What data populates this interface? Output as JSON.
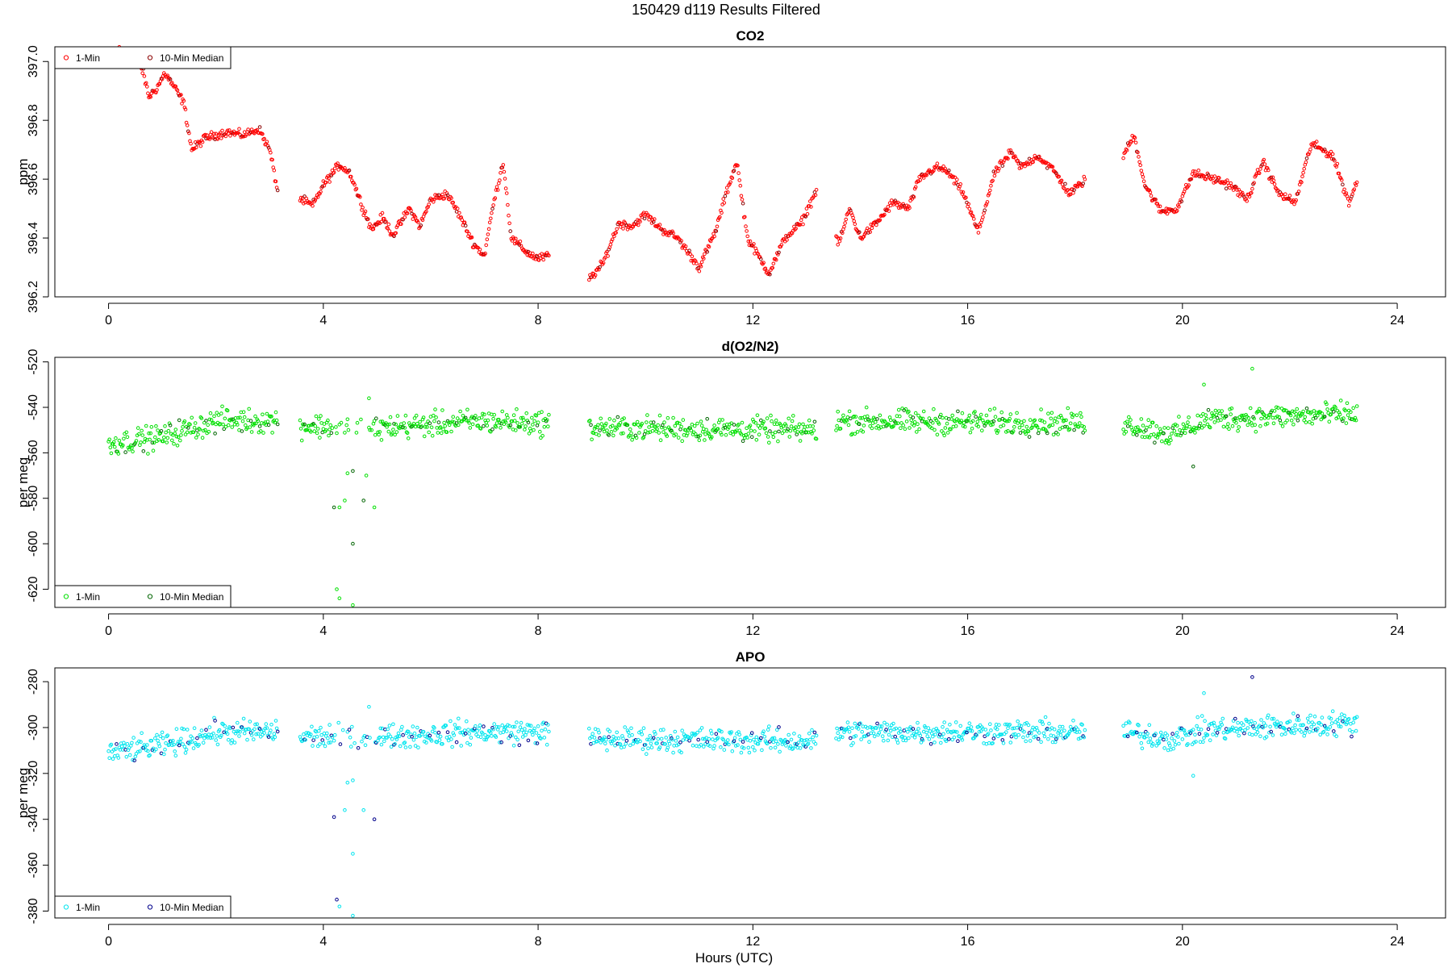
{
  "figure": {
    "title": "150429   d119   Results Filtered",
    "xlabel": "Hours (UTC)"
  },
  "chart_data": [
    {
      "type": "scatter",
      "title": "CO2",
      "xlabel": "Hours (UTC)",
      "ylabel": "ppm",
      "xlim": [
        -1,
        24.9
      ],
      "ylim": [
        396.2,
        397.05
      ],
      "xticks": [
        0,
        4,
        8,
        12,
        16,
        20,
        24
      ],
      "yticks": [
        396.2,
        396.4,
        396.6,
        396.8,
        397.0
      ],
      "ytick_labels": [
        "396.2",
        "396.4",
        "396.6",
        "396.8",
        "397.0"
      ],
      "legend": {
        "position": "top-left",
        "entries": [
          "1-Min",
          "10-Min Median"
        ]
      },
      "series": [
        {
          "name": "1-Min",
          "color": "#ff0000",
          "marker": "open-circle"
        },
        {
          "name": "10-Min Median",
          "color": "#8b0000",
          "marker": "open-circle"
        }
      ],
      "gaps": [
        [
          3.15,
          3.55
        ],
        [
          8.2,
          8.95
        ],
        [
          13.2,
          13.55
        ],
        [
          18.2,
          18.9
        ]
      ],
      "anchors": [
        [
          0,
          397.08
        ],
        [
          0.3,
          397.02
        ],
        [
          0.45,
          397.04
        ],
        [
          0.65,
          396.96
        ],
        [
          0.75,
          396.88
        ],
        [
          0.9,
          396.91
        ],
        [
          1.05,
          396.96
        ],
        [
          1.2,
          396.92
        ],
        [
          1.4,
          396.86
        ],
        [
          1.55,
          396.7
        ],
        [
          1.8,
          396.74
        ],
        [
          2.2,
          396.76
        ],
        [
          2.5,
          396.75
        ],
        [
          2.8,
          396.77
        ],
        [
          3.0,
          396.7
        ],
        [
          3.15,
          396.56
        ],
        [
          3.6,
          396.53
        ],
        [
          3.8,
          396.51
        ],
        [
          4.0,
          396.58
        ],
        [
          4.3,
          396.65
        ],
        [
          4.5,
          396.62
        ],
        [
          4.7,
          396.52
        ],
        [
          4.9,
          396.43
        ],
        [
          5.1,
          396.47
        ],
        [
          5.3,
          396.41
        ],
        [
          5.6,
          396.5
        ],
        [
          5.8,
          396.44
        ],
        [
          6.0,
          396.53
        ],
        [
          6.3,
          396.55
        ],
        [
          6.5,
          396.49
        ],
        [
          6.8,
          396.38
        ],
        [
          7.0,
          396.34
        ],
        [
          7.15,
          396.5
        ],
        [
          7.35,
          396.66
        ],
        [
          7.5,
          396.4
        ],
        [
          7.8,
          396.35
        ],
        [
          8.0,
          396.33
        ],
        [
          8.2,
          396.34
        ],
        [
          8.95,
          396.26
        ],
        [
          9.2,
          396.31
        ],
        [
          9.5,
          396.45
        ],
        [
          9.75,
          396.44
        ],
        [
          10.0,
          396.48
        ],
        [
          10.3,
          396.43
        ],
        [
          10.6,
          396.4
        ],
        [
          10.8,
          396.35
        ],
        [
          11.0,
          396.3
        ],
        [
          11.3,
          396.42
        ],
        [
          11.5,
          396.55
        ],
        [
          11.7,
          396.66
        ],
        [
          11.9,
          396.4
        ],
        [
          12.1,
          396.34
        ],
        [
          12.3,
          396.28
        ],
        [
          12.6,
          396.4
        ],
        [
          12.9,
          396.45
        ],
        [
          13.2,
          396.57
        ],
        [
          13.6,
          396.38
        ],
        [
          13.8,
          396.5
        ],
        [
          14.0,
          396.4
        ],
        [
          14.3,
          396.45
        ],
        [
          14.6,
          396.52
        ],
        [
          14.9,
          396.5
        ],
        [
          15.1,
          396.6
        ],
        [
          15.4,
          396.64
        ],
        [
          15.6,
          396.63
        ],
        [
          15.9,
          396.56
        ],
        [
          16.2,
          396.42
        ],
        [
          16.5,
          396.62
        ],
        [
          16.8,
          396.69
        ],
        [
          17.0,
          396.64
        ],
        [
          17.3,
          396.68
        ],
        [
          17.6,
          396.63
        ],
        [
          17.9,
          396.55
        ],
        [
          18.2,
          396.6
        ],
        [
          18.9,
          396.68
        ],
        [
          19.1,
          396.75
        ],
        [
          19.3,
          396.58
        ],
        [
          19.6,
          396.49
        ],
        [
          19.9,
          396.5
        ],
        [
          20.2,
          396.62
        ],
        [
          20.6,
          396.6
        ],
        [
          20.9,
          396.58
        ],
        [
          21.2,
          396.53
        ],
        [
          21.5,
          396.66
        ],
        [
          21.8,
          396.55
        ],
        [
          22.1,
          396.52
        ],
        [
          22.4,
          396.72
        ],
        [
          22.8,
          396.68
        ],
        [
          23.1,
          396.52
        ],
        [
          23.25,
          396.59
        ]
      ],
      "noise": 0.012
    },
    {
      "type": "scatter",
      "title": "d(O2/N2)",
      "xlabel": "",
      "ylabel": "per meg",
      "xlim": [
        -1,
        24.9
      ],
      "ylim": [
        -628,
        -518
      ],
      "xticks": [
        0,
        4,
        8,
        12,
        16,
        20,
        24
      ],
      "yticks": [
        -620,
        -600,
        -580,
        -560,
        -540,
        -520
      ],
      "ytick_labels": [
        "-620",
        "-600",
        "-580",
        "-560",
        "-540",
        "-520"
      ],
      "legend": {
        "position": "bottom-left",
        "entries": [
          "1-Min",
          "10-Min Median"
        ]
      },
      "series": [
        {
          "name": "1-Min",
          "color": "#00e000",
          "marker": "open-circle"
        },
        {
          "name": "10-Min Median",
          "color": "#006400",
          "marker": "open-circle"
        }
      ],
      "gaps": [
        [
          3.15,
          3.55
        ],
        [
          8.2,
          8.95
        ],
        [
          13.2,
          13.55
        ],
        [
          18.2,
          18.9
        ]
      ],
      "anchors": [
        [
          0,
          -556
        ],
        [
          1.0,
          -553
        ],
        [
          2.0,
          -546
        ],
        [
          3.15,
          -546
        ],
        [
          3.55,
          -548
        ],
        [
          5,
          -549
        ],
        [
          7,
          -546
        ],
        [
          8.2,
          -547
        ],
        [
          8.95,
          -549
        ],
        [
          13.2,
          -550
        ],
        [
          13.55,
          -546
        ],
        [
          18.2,
          -547
        ],
        [
          18.9,
          -547
        ],
        [
          19.8,
          -552
        ],
        [
          20.5,
          -545
        ],
        [
          23.25,
          -543
        ]
      ],
      "noise": 4.5,
      "outliers": [
        [
          4.2,
          -584
        ],
        [
          4.3,
          -584
        ],
        [
          4.45,
          -569
        ],
        [
          4.4,
          -581
        ],
        [
          4.55,
          -600
        ],
        [
          4.25,
          -620
        ],
        [
          4.3,
          -624
        ],
        [
          4.55,
          -627
        ],
        [
          4.75,
          -581
        ],
        [
          4.95,
          -584
        ],
        [
          4.8,
          -570
        ],
        [
          4.85,
          -536
        ],
        [
          4.55,
          -568
        ],
        [
          4.9,
          -550
        ],
        [
          20.4,
          -530
        ],
        [
          21.3,
          -523
        ],
        [
          20.2,
          -566
        ]
      ]
    },
    {
      "type": "scatter",
      "title": "APO",
      "xlabel": "Hours (UTC)",
      "ylabel": "per meg",
      "xlim": [
        -1,
        24.9
      ],
      "ylim": [
        -383,
        -274
      ],
      "xticks": [
        0,
        4,
        8,
        12,
        16,
        20,
        24
      ],
      "yticks": [
        -380,
        -360,
        -340,
        -320,
        -300,
        -280
      ],
      "ytick_labels": [
        "-380",
        "-360",
        "-340",
        "-320",
        "-300",
        "-280"
      ],
      "legend": {
        "position": "bottom-left",
        "entries": [
          "1-Min",
          "10-Min Median"
        ]
      },
      "series": [
        {
          "name": "1-Min",
          "color": "#00e5ee",
          "marker": "open-circle"
        },
        {
          "name": "10-Min Median",
          "color": "#00008b",
          "marker": "open-circle"
        }
      ],
      "gaps": [
        [
          3.15,
          3.55
        ],
        [
          8.2,
          8.95
        ],
        [
          13.2,
          13.55
        ],
        [
          18.2,
          18.9
        ]
      ],
      "anchors": [
        [
          0,
          -311
        ],
        [
          1.0,
          -308
        ],
        [
          2.0,
          -302
        ],
        [
          3.15,
          -302
        ],
        [
          3.55,
          -304
        ],
        [
          5,
          -304
        ],
        [
          7,
          -302
        ],
        [
          8.2,
          -302
        ],
        [
          8.95,
          -305
        ],
        [
          13.2,
          -306
        ],
        [
          13.55,
          -302
        ],
        [
          18.2,
          -302
        ],
        [
          18.9,
          -302
        ],
        [
          19.8,
          -305
        ],
        [
          20.5,
          -301
        ],
        [
          23.25,
          -298
        ]
      ],
      "noise": 4.5,
      "outliers": [
        [
          4.2,
          -339
        ],
        [
          4.45,
          -324
        ],
        [
          4.4,
          -336
        ],
        [
          4.55,
          -355
        ],
        [
          4.25,
          -375
        ],
        [
          4.3,
          -378
        ],
        [
          4.55,
          -382
        ],
        [
          4.75,
          -336
        ],
        [
          4.95,
          -340
        ],
        [
          4.85,
          -291
        ],
        [
          4.55,
          -323
        ],
        [
          20.4,
          -285
        ],
        [
          21.3,
          -278
        ],
        [
          20.2,
          -321
        ]
      ]
    }
  ]
}
